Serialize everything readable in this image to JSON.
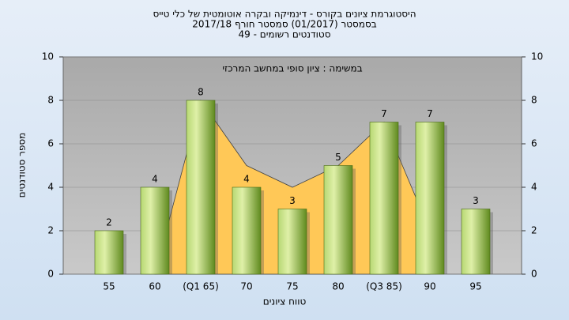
{
  "chart_data": {
    "type": "bar",
    "title": "היסטוגרמת ציונים בקורס - דינמיקה ובקרה אוטומטית של כלי טייס",
    "subtitle": [
      "בסמסטר (01/2017) סמסטר חורף 2017/18",
      "סטודנטים רשומים - 49"
    ],
    "annotation": "במשימה : ציון סופי במחשב המרכזי",
    "x_label": "טווח ציונים",
    "y_label": "מספר סטודנטים",
    "categories": [
      "55",
      "60",
      "(Q1 65)",
      "70",
      "75",
      "80",
      "(Q3 85)",
      "90",
      "95"
    ],
    "series": [
      {
        "color": "#8fbf3a",
        "values": [
          2,
          4,
          8,
          4,
          3,
          5,
          7,
          7,
          3
        ]
      },
      {
        "color": "#ffc857",
        "values": [
          null,
          0,
          8,
          5,
          4,
          5,
          7,
          2,
          null
        ]
      }
    ],
    "ylim": [
      0,
      10
    ],
    "yticks": [
      0,
      2,
      4,
      6,
      8,
      10
    ],
    "y2lim": [
      0,
      10
    ],
    "y2ticks": [
      0,
      2,
      4,
      6,
      8,
      10
    ],
    "grid": true
  }
}
